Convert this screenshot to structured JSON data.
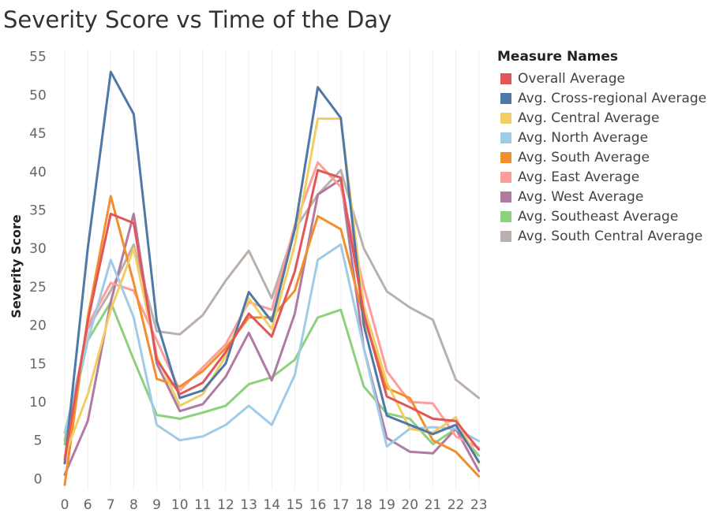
{
  "chart_data": {
    "type": "line",
    "title": "Severity Score vs Time of the Day",
    "xlabel": "",
    "ylabel": "Severity Score",
    "categories": [
      "0",
      "6",
      "7",
      "8",
      "9",
      "10",
      "11",
      "12",
      "13",
      "14",
      "15",
      "16",
      "17",
      "18",
      "19",
      "20",
      "21",
      "22",
      "23"
    ],
    "yticks": [
      0,
      5,
      10,
      15,
      20,
      25,
      30,
      35,
      40,
      45,
      50,
      55
    ],
    "ylim": [
      -1.5,
      56
    ],
    "grid": "vertical",
    "legend": {
      "title": "Measure Names",
      "position": "right"
    },
    "series": [
      {
        "name": "Overall Average",
        "color": "#E15759",
        "values": [
          2.5,
          20.5,
          34.5,
          33.3,
          15.5,
          11,
          12.5,
          16.5,
          21.5,
          18.5,
          27,
          40.2,
          39.2,
          21.5,
          10.7,
          9.3,
          7.8,
          7.5,
          3.8
        ]
      },
      {
        "name": "Avg. Cross-regional Average",
        "color": "#4E79A7",
        "values": [
          2,
          30,
          53,
          47.5,
          20.5,
          10.5,
          11.5,
          15,
          24.3,
          20.5,
          32.5,
          51,
          47,
          20,
          8.2,
          7,
          5.8,
          7,
          2.2
        ]
      },
      {
        "name": "Avg. Central Average",
        "color": "#F1CE63",
        "values": [
          3,
          11,
          22,
          30,
          16,
          9.5,
          11,
          16,
          23.5,
          19.5,
          30.5,
          46.9,
          46.9,
          22.5,
          12.5,
          6.5,
          6,
          8,
          2
        ]
      },
      {
        "name": "Avg. North Average",
        "color": "#A0CBE8",
        "values": [
          6,
          18,
          28.5,
          21,
          7,
          5,
          5.5,
          7,
          9.5,
          7,
          13.5,
          28.5,
          30.5,
          17,
          4.2,
          6.5,
          6.7,
          6.5,
          4.9
        ]
      },
      {
        "name": "Avg. South Average",
        "color": "#F28E2B",
        "values": [
          -0.8,
          21,
          36.8,
          25.5,
          13,
          12,
          14,
          17,
          21,
          21,
          24.5,
          34.2,
          32.5,
          21,
          11.8,
          10.5,
          5,
          3.5,
          0.3
        ]
      },
      {
        "name": "Avg. East Average",
        "color": "#FF9D9A",
        "values": [
          2,
          20,
          25.5,
          24.5,
          18,
          11.5,
          14.5,
          17.5,
          23,
          22,
          33,
          41.2,
          38,
          25,
          14,
          10,
          9.8,
          5.5,
          4
        ]
      },
      {
        "name": "Avg. West Average",
        "color": "#B07AA1",
        "values": [
          0.5,
          7.5,
          23,
          34.5,
          15,
          8.8,
          9.7,
          13.3,
          19,
          12.8,
          21.5,
          37,
          39,
          17,
          5.3,
          3.5,
          3.3,
          6.5,
          1
        ]
      },
      {
        "name": "Avg. Southeast Average",
        "color": "#8CD17D",
        "values": [
          4.5,
          18,
          23,
          15.5,
          8.3,
          7.8,
          8.6,
          9.5,
          12.3,
          13.2,
          15.5,
          21,
          22,
          12,
          8.5,
          7.8,
          4.5,
          6.5,
          3
        ]
      },
      {
        "name": "Avg. South Central Average",
        "color": "#BAB0AC",
        "values": [
          5,
          19.5,
          24.5,
          30.5,
          19.2,
          18.8,
          21.3,
          25.8,
          29.7,
          23.5,
          32.5,
          37,
          40.2,
          30,
          24.4,
          22.3,
          20.7,
          12.9,
          10.5
        ]
      }
    ]
  }
}
